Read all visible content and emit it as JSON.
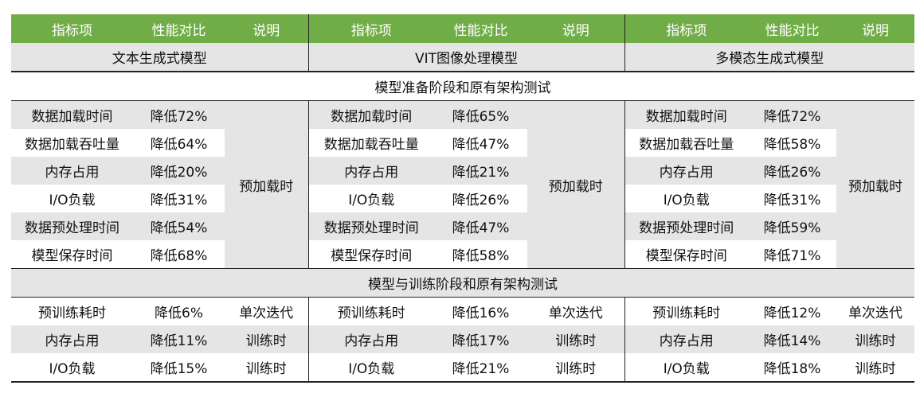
{
  "header": [
    "指标项",
    "性能对比",
    "说明",
    "指标项",
    "性能对比",
    "说明",
    "指标项",
    "性能对比",
    "说明"
  ],
  "models": [
    "文本生成式模型",
    "VIT图像处理模型",
    "多模态生成式模型"
  ],
  "prep_stage_title": "模型准备阶段和原有架构测试",
  "prep_note": "预加载时",
  "prep_rows": [
    [
      [
        "数据加载时间",
        "降低72%"
      ],
      [
        "数据加载时间",
        "降低65%"
      ],
      [
        "数据加载时间",
        "降低72%"
      ]
    ],
    [
      [
        "数据加载吞吐量",
        "降低64%"
      ],
      [
        "数据加载吞吐量",
        "降低47%"
      ],
      [
        "数据加载吞吐量",
        "降低58%"
      ]
    ],
    [
      [
        "内存占用",
        "降低20%"
      ],
      [
        "内存占用",
        "降低21%"
      ],
      [
        "内存占用",
        "降低26%"
      ]
    ],
    [
      [
        "I/O负载",
        "降低31%"
      ],
      [
        "I/O负载",
        "降低26%"
      ],
      [
        "I/O负载",
        "降低31%"
      ]
    ],
    [
      [
        "数据预处理时间",
        "降低54%"
      ],
      [
        "数据预处理时间",
        "降低47%"
      ],
      [
        "数据预处理时间",
        "降低59%"
      ]
    ],
    [
      [
        "模型保存时间",
        "降低68%"
      ],
      [
        "模型保存时间",
        "降低58%"
      ],
      [
        "模型保存时间",
        "降低71%"
      ]
    ]
  ],
  "train_stage_title": "模型与训练阶段和原有架构测试",
  "train_rows": [
    [
      [
        "预训练耗时",
        "降低6%",
        "单次迭代"
      ],
      [
        "预训练耗时",
        "降低16%",
        "单次迭代"
      ],
      [
        "预训练耗时",
        "降低12%",
        "单次迭代"
      ]
    ],
    [
      [
        "内存占用",
        "降低11%",
        "训练时"
      ],
      [
        "内存占用",
        "降低17%",
        "训练时"
      ],
      [
        "内存占用",
        "降低14%",
        "训练时"
      ]
    ],
    [
      [
        "I/O负载",
        "降低15%",
        "训练时"
      ],
      [
        "I/O负载",
        "降低21%",
        "训练时"
      ],
      [
        "I/O负载",
        "降低18%",
        "训练时"
      ]
    ]
  ]
}
